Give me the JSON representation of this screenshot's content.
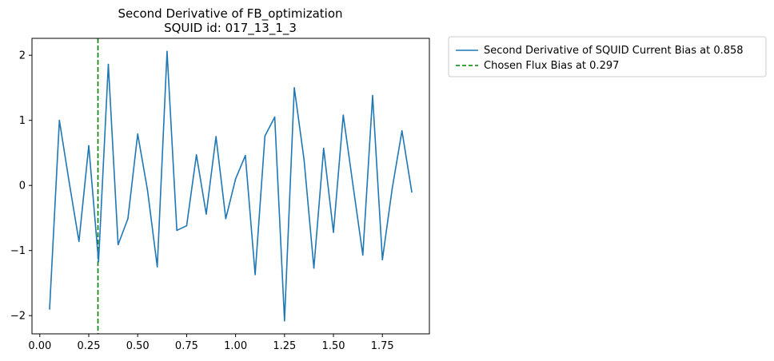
{
  "chart_data": {
    "type": "line",
    "title": "Second Derivative of FB_optimization",
    "subtitle": "SQUID id: 017_13_1_3",
    "xlabel": "",
    "ylabel": "",
    "xlim": [
      -0.04,
      1.99
    ],
    "ylim": [
      -2.28,
      2.26
    ],
    "xticks": [
      0.0,
      0.25,
      0.5,
      0.75,
      1.0,
      1.25,
      1.5,
      1.75
    ],
    "xtick_labels": [
      "0.00",
      "0.25",
      "0.50",
      "0.75",
      "1.00",
      "1.25",
      "1.50",
      "1.75"
    ],
    "yticks": [
      -2,
      -1,
      0,
      1,
      2
    ],
    "ytick_labels": [
      "−2",
      "−1",
      "0",
      "1",
      "2"
    ],
    "grid": false,
    "legend_position": "outside-top-right",
    "series": [
      {
        "name": "Second Derivative of SQUID Current Bias at 0.858",
        "color": "#1f77b4",
        "style": "solid",
        "x": [
          0.05,
          0.1,
          0.15,
          0.2,
          0.25,
          0.3,
          0.35,
          0.4,
          0.45,
          0.5,
          0.55,
          0.6,
          0.65,
          0.7,
          0.75,
          0.8,
          0.85,
          0.9,
          0.95,
          1.0,
          1.05,
          1.1,
          1.15,
          1.2,
          1.25,
          1.3,
          1.35,
          1.4,
          1.45,
          1.5,
          1.55,
          1.6,
          1.65,
          1.7,
          1.75,
          1.8,
          1.85,
          1.9
        ],
        "y": [
          -1.9,
          1.0,
          0.05,
          -0.86,
          0.61,
          -1.17,
          1.86,
          -0.91,
          -0.51,
          0.79,
          -0.07,
          -1.25,
          2.06,
          -0.69,
          -0.62,
          0.47,
          -0.44,
          0.75,
          -0.51,
          0.1,
          0.46,
          -1.37,
          0.76,
          1.05,
          -2.08,
          1.5,
          0.39,
          -1.27,
          0.57,
          -0.72,
          1.08,
          0.0,
          -1.07,
          1.38,
          -1.14,
          -0.05,
          0.84,
          -0.1
        ]
      }
    ],
    "vlines": [
      {
        "name": "Chosen Flux Bias at 0.297",
        "x": 0.297,
        "color": "#008000",
        "style": "dashed"
      }
    ]
  }
}
